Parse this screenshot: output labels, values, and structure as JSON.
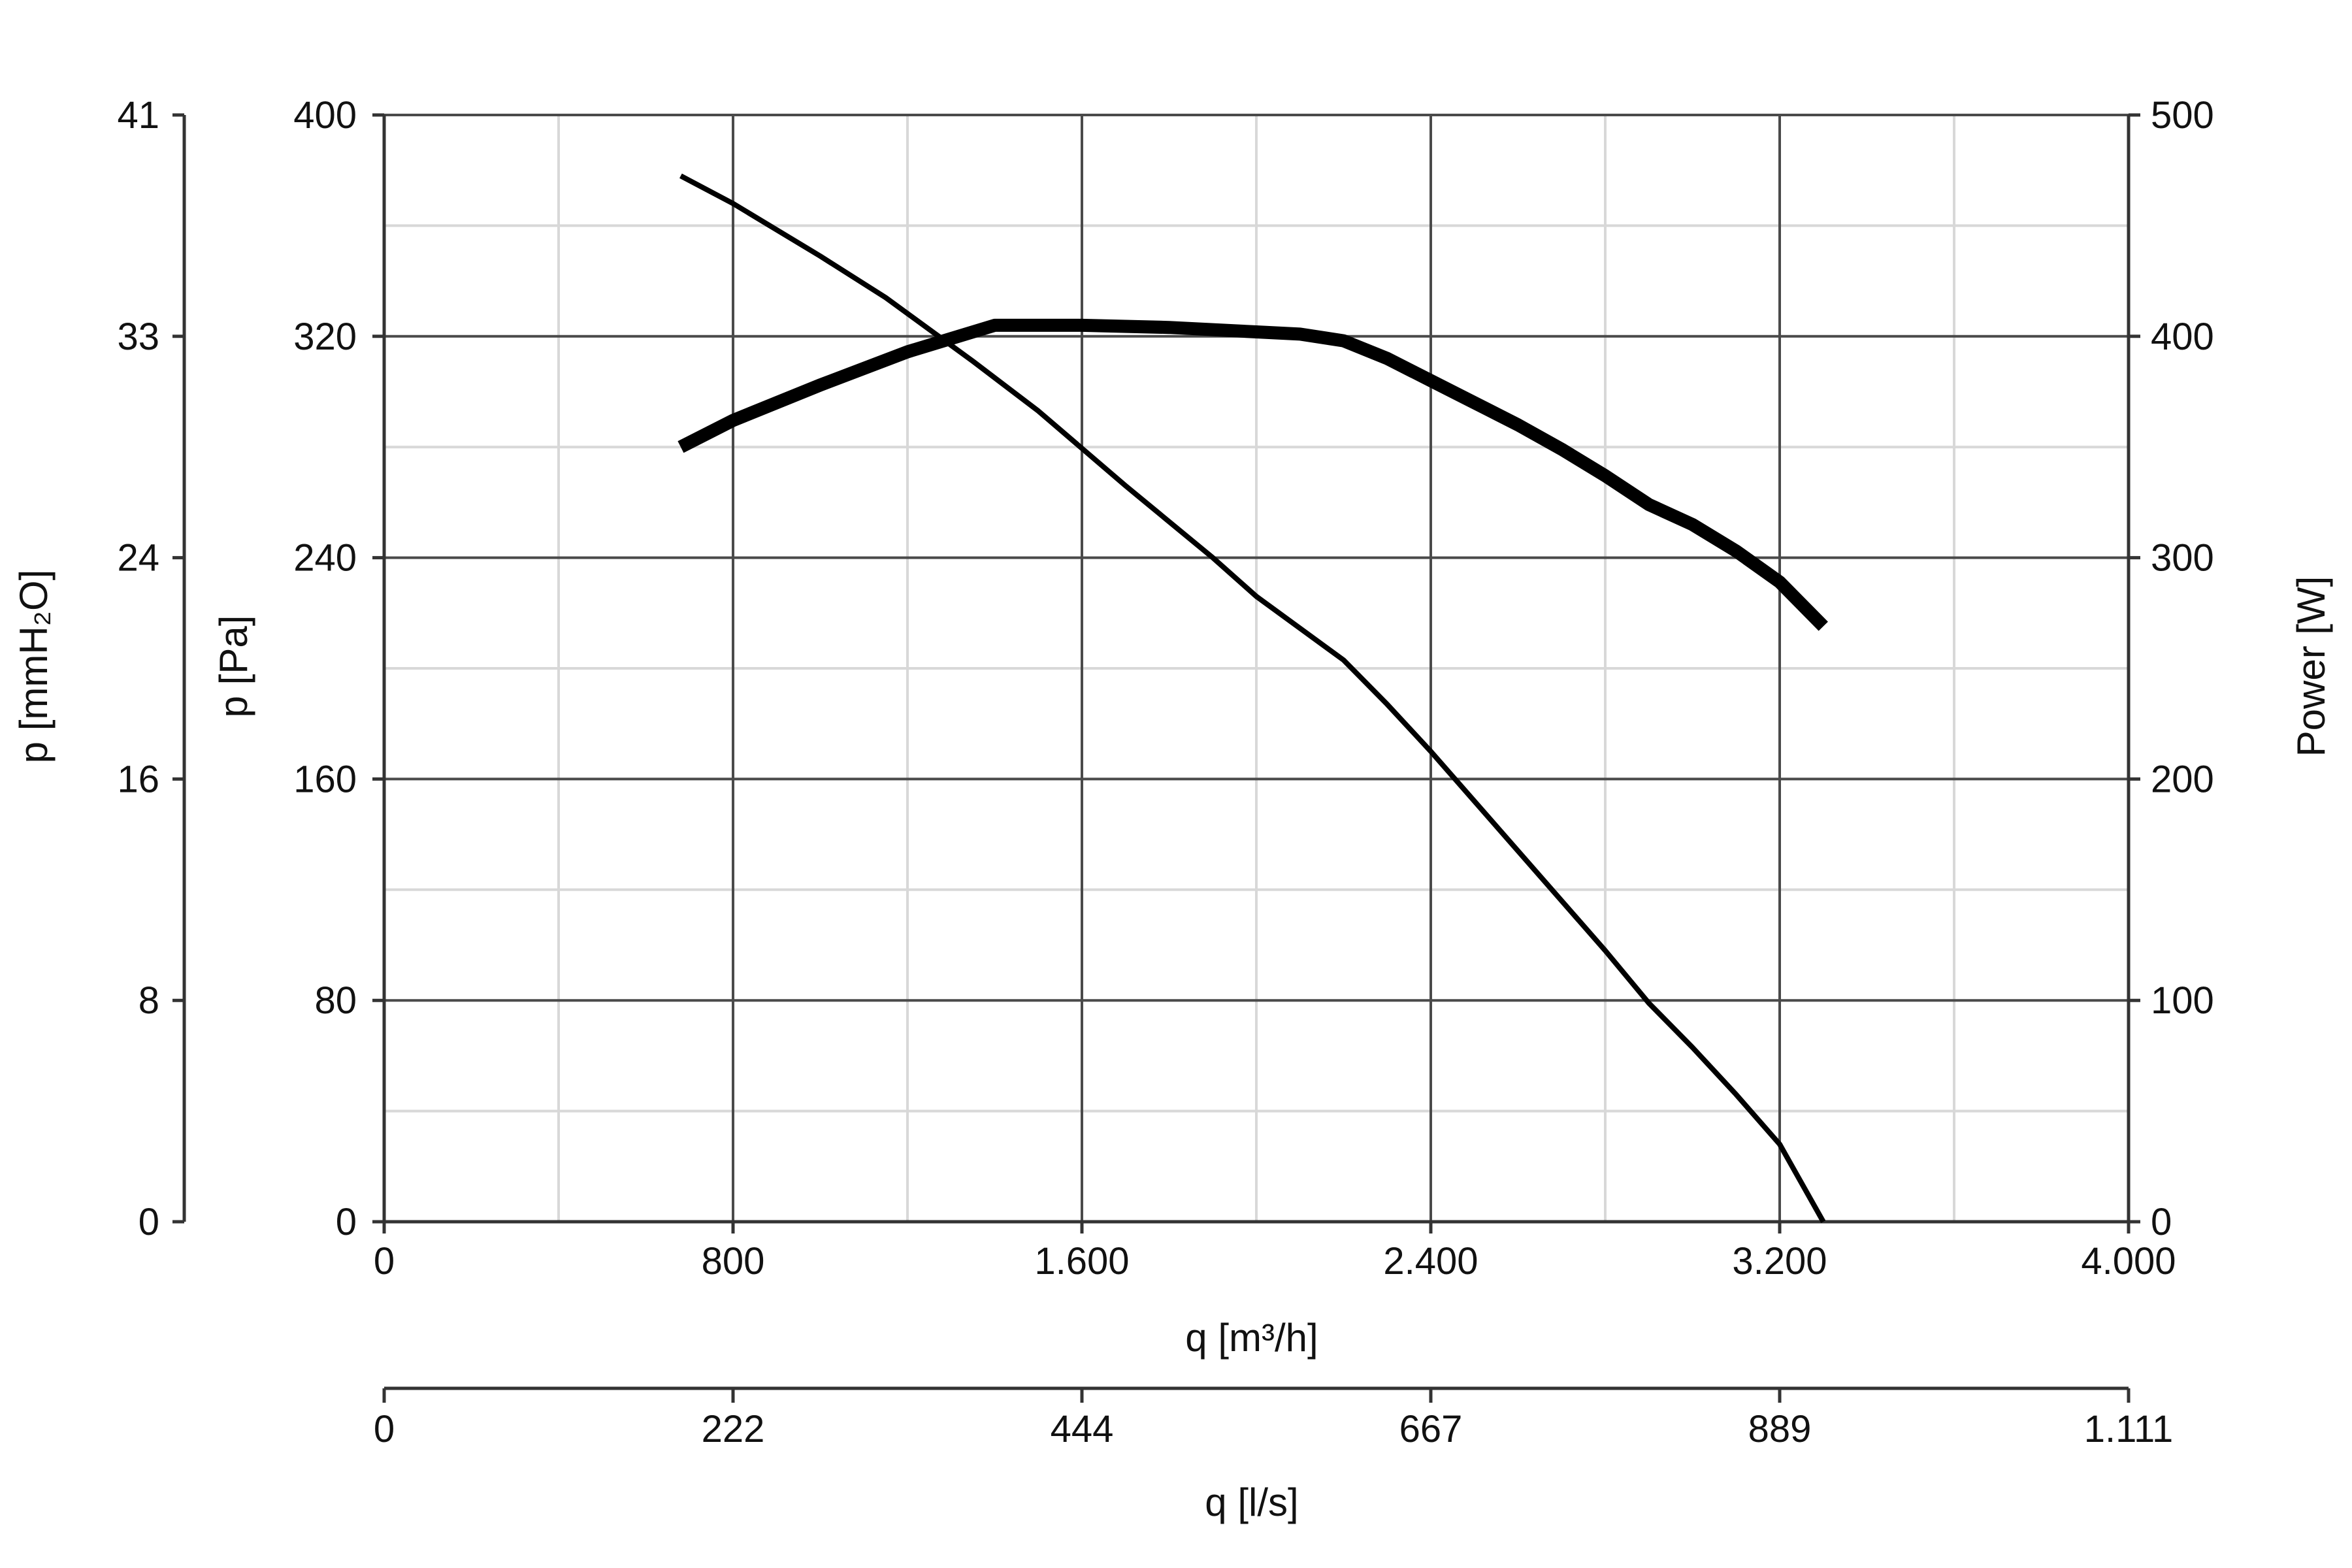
{
  "chart_data": {
    "type": "line",
    "xlabel": "q [m³/h]",
    "x2label": "q [l/s]",
    "ylabel_left": "p [Pa]",
    "ylabel_far_left": "p [mmH₂O]",
    "ylabel_right": "Power [W]",
    "xlim": [
      0,
      4000
    ],
    "ylim": [
      0,
      400
    ],
    "y_right_lim": [
      0,
      500
    ],
    "grid": true,
    "x_ticks": [
      {
        "value": 0,
        "label": "0"
      },
      {
        "value": 800,
        "label": "800"
      },
      {
        "value": 1600,
        "label": "1.600"
      },
      {
        "value": 2400,
        "label": "2.400"
      },
      {
        "value": 3200,
        "label": "3.200"
      },
      {
        "value": 4000,
        "label": "4.000"
      }
    ],
    "x2_ticks": [
      {
        "value": 0,
        "label": "0"
      },
      {
        "value": 800,
        "label": "222"
      },
      {
        "value": 1600,
        "label": "444"
      },
      {
        "value": 2400,
        "label": "667"
      },
      {
        "value": 3200,
        "label": "889"
      },
      {
        "value": 4000,
        "label": "1.111"
      }
    ],
    "y_ticks": [
      {
        "value": 0,
        "label": "0"
      },
      {
        "value": 80,
        "label": "80"
      },
      {
        "value": 160,
        "label": "160"
      },
      {
        "value": 240,
        "label": "240"
      },
      {
        "value": 320,
        "label": "320"
      },
      {
        "value": 400,
        "label": "400"
      }
    ],
    "y_far_left_ticks": [
      {
        "value": 0,
        "label": "0"
      },
      {
        "value": 80,
        "label": "8"
      },
      {
        "value": 160,
        "label": "16"
      },
      {
        "value": 240,
        "label": "24"
      },
      {
        "value": 320,
        "label": "33"
      },
      {
        "value": 400,
        "label": "41"
      }
    ],
    "y_right_ticks": [
      {
        "value": 0,
        "label": "0"
      },
      {
        "value": 100,
        "label": "100"
      },
      {
        "value": 200,
        "label": "200"
      },
      {
        "value": 300,
        "label": "300"
      },
      {
        "value": 400,
        "label": "400"
      },
      {
        "value": 500,
        "label": "500"
      }
    ],
    "series": [
      {
        "axis": "left",
        "x": [
          680,
          800,
          1000,
          1150,
          1350,
          1500,
          1700,
          1900,
          2000,
          2200,
          2300,
          2400,
          2600,
          2800,
          2900,
          3000,
          3100,
          3200,
          3300
        ],
        "y": [
          378,
          368,
          349,
          334,
          311,
          293,
          266,
          240,
          226,
          203,
          187,
          170,
          134,
          98,
          79,
          63,
          46,
          28,
          0
        ]
      },
      {
        "axis": "right",
        "x": [
          680,
          800,
          1000,
          1200,
          1400,
          1600,
          1800,
          2000,
          2100,
          2200,
          2300,
          2400,
          2500,
          2600,
          2700,
          2800,
          2900,
          3000,
          3100,
          3200,
          3300
        ],
        "y": [
          350,
          362,
          378,
          393,
          405,
          405,
          404,
          402,
          401,
          398,
          390,
          380,
          370,
          360,
          349,
          337,
          324,
          315,
          303,
          289,
          269
        ]
      }
    ]
  }
}
